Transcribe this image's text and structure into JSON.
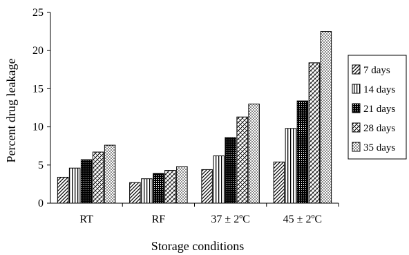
{
  "chart_data": {
    "type": "bar",
    "title": "",
    "xlabel": "Storage conditions",
    "ylabel": "Percent drug leakage",
    "categories": [
      "RT",
      "RF",
      "37 ± 2ºC",
      "45 ± 2ºC"
    ],
    "ylim": [
      0,
      25
    ],
    "yticks": [
      0,
      5,
      10,
      15,
      20,
      25
    ],
    "grid": false,
    "legend_position": "right",
    "series": [
      {
        "name": "7 days",
        "pattern": "diagonal-hatch",
        "values": [
          3.4,
          2.7,
          4.4,
          5.4
        ]
      },
      {
        "name": "14 days",
        "pattern": "vertical-lines",
        "values": [
          4.6,
          3.2,
          6.2,
          9.8
        ]
      },
      {
        "name": "21 days",
        "pattern": "dark-dots",
        "values": [
          5.7,
          3.9,
          8.6,
          13.4
        ]
      },
      {
        "name": "28 days",
        "pattern": "crosshatch",
        "values": [
          6.7,
          4.3,
          11.3,
          18.4
        ]
      },
      {
        "name": "35 days",
        "pattern": "light-dots",
        "values": [
          7.6,
          4.8,
          13.0,
          22.5
        ]
      }
    ]
  }
}
